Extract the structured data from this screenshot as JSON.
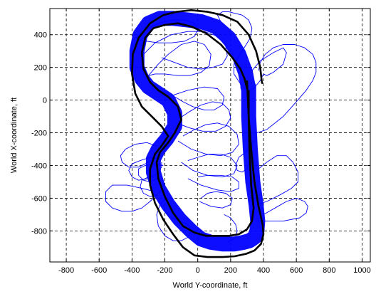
{
  "chart_data": {
    "type": "line",
    "title": "",
    "xlabel": "World Y-coordinate, ft",
    "ylabel": "World X-coordinate, ft",
    "xlim": [
      -900,
      1050
    ],
    "ylim": [
      -990,
      560
    ],
    "xticks": [
      -800,
      -600,
      -400,
      -200,
      0,
      200,
      400,
      600,
      800,
      1000
    ],
    "yticks": [
      -800,
      -600,
      -400,
      -200,
      0,
      200,
      400
    ],
    "grid": true,
    "colors": {
      "tracks": "#0000ff",
      "boundary": "#000000",
      "frame": "#000000",
      "grid": "#000000"
    },
    "series": [
      {
        "role": "track-band",
        "x": [
          310,
          310,
          320,
          335,
          355,
          365,
          360,
          345,
          315,
          280,
          225,
          150,
          80,
          20,
          -40,
          -110,
          -180,
          -240,
          -270,
          -270,
          -240,
          -190,
          -140,
          -140,
          -180,
          -240,
          -300,
          -340,
          -370,
          -370,
          -350,
          -300,
          -230,
          -150,
          -60,
          20,
          110,
          190,
          250,
          290,
          305,
          305
        ],
        "y": [
          80,
          -100,
          -300,
          -500,
          -640,
          -740,
          -800,
          -840,
          -860,
          -870,
          -880,
          -880,
          -870,
          -850,
          -800,
          -730,
          -640,
          -540,
          -440,
          -360,
          -300,
          -240,
          -160,
          -80,
          0,
          40,
          80,
          130,
          200,
          300,
          400,
          470,
          500,
          500,
          490,
          480,
          450,
          380,
          280,
          170,
          90,
          80
        ]
      },
      {
        "role": "outer-boundary",
        "x": [
          300,
          310,
          325,
          345,
          370,
          395,
          400,
          385,
          345,
          295,
          225,
          150,
          60,
          -20,
          -90,
          -150,
          -210,
          -260,
          -290,
          -290,
          -260,
          -220,
          -180,
          -220,
          -280,
          -340,
          -380,
          -400,
          -395,
          -360,
          -290,
          -210,
          -130,
          -40,
          60,
          150,
          240,
          310,
          355,
          380,
          390,
          395
        ],
        "y": [
          120,
          -100,
          -300,
          -500,
          -650,
          -760,
          -820,
          -880,
          -920,
          -940,
          -955,
          -960,
          -960,
          -950,
          -900,
          -820,
          -730,
          -630,
          -520,
          -420,
          -330,
          -280,
          -220,
          -160,
          -100,
          -40,
          40,
          160,
          280,
          380,
          470,
          520,
          540,
          550,
          540,
          520,
          480,
          400,
          300,
          200,
          110,
          100
        ]
      },
      {
        "role": "inner-boundary",
        "x": [
          310,
          310,
          315,
          325,
          340,
          330,
          300,
          250,
          190,
          120,
          50,
          -20,
          -90,
          -150,
          -200,
          -240,
          -250,
          -230,
          -180,
          -140,
          -100,
          -120,
          -180,
          -240,
          -290,
          -330,
          -340,
          -320,
          -270,
          -200,
          -120,
          -40,
          50,
          140,
          210,
          260,
          285,
          295,
          300
        ],
        "y": [
          60,
          -120,
          -320,
          -520,
          -660,
          -740,
          -790,
          -820,
          -830,
          -830,
          -830,
          -810,
          -770,
          -690,
          -590,
          -480,
          -380,
          -320,
          -260,
          -200,
          -120,
          -40,
          20,
          60,
          110,
          190,
          290,
          380,
          440,
          460,
          470,
          450,
          410,
          340,
          260,
          190,
          130,
          90,
          70
        ]
      },
      {
        "role": "wander-path",
        "x": [
          330,
          380,
          460,
          520,
          540,
          520,
          460,
          420,
          400,
          380,
          340,
          300,
          260,
          220,
          220,
          270,
          320,
          330,
          310,
          270,
          230,
          190,
          150,
          120,
          140
        ],
        "y": [
          180,
          240,
          290,
          320,
          290,
          220,
          170,
          150,
          160,
          120,
          70,
          60,
          100,
          160,
          220,
          300,
          380,
          440,
          490,
          520,
          530,
          540,
          540,
          520,
          480
        ]
      },
      {
        "role": "wander-path",
        "x": [
          360,
          420,
          520,
          600,
          660,
          700,
          720,
          720,
          700,
          650,
          590,
          520,
          460,
          410,
          380,
          370
        ],
        "y": [
          -200,
          -180,
          -100,
          -10,
          60,
          120,
          170,
          230,
          280,
          320,
          340,
          340,
          320,
          280,
          230,
          180
        ]
      },
      {
        "role": "wander-path",
        "x": [
          360,
          420,
          500,
          570,
          610,
          610,
          580,
          540,
          480,
          420,
          370
        ],
        "y": [
          -640,
          -620,
          -580,
          -540,
          -500,
          -440,
          -380,
          -340,
          -340,
          -380,
          -420
        ]
      },
      {
        "role": "wander-path",
        "x": [
          360,
          420,
          520,
          620,
          660,
          670,
          650,
          600,
          540,
          470,
          400
        ],
        "y": [
          -740,
          -740,
          -740,
          -720,
          -690,
          -650,
          -620,
          -600,
          -620,
          -660,
          -700
        ]
      },
      {
        "role": "wander-path",
        "x": [
          340,
          320,
          290,
          250,
          230,
          240,
          270,
          300,
          310
        ],
        "y": [
          -250,
          -280,
          -320,
          -350,
          -400,
          -430,
          -440,
          -420,
          -380
        ]
      },
      {
        "role": "wander-path",
        "x": [
          -260,
          -340,
          -430,
          -520,
          -560,
          -560,
          -520,
          -460,
          -400,
          -340,
          -290,
          -250
        ],
        "y": [
          -560,
          -540,
          -520,
          -520,
          -560,
          -620,
          -660,
          -680,
          -680,
          -660,
          -620,
          -580
        ]
      },
      {
        "role": "wander-path",
        "x": [
          -250,
          -310,
          -380,
          -440,
          -470,
          -460,
          -420,
          -360,
          -300,
          -260,
          -240
        ],
        "y": [
          -280,
          -260,
          -270,
          -300,
          -340,
          -380,
          -410,
          -410,
          -380,
          -340,
          -300
        ]
      },
      {
        "role": "wander-path",
        "x": [
          -230,
          -290,
          -350,
          -400,
          -420,
          -400,
          -360,
          -300,
          -250,
          -220,
          -220
        ],
        "y": [
          -360,
          -350,
          -370,
          -390,
          -430,
          -470,
          -490,
          -480,
          -450,
          -410,
          -380
        ]
      },
      {
        "role": "wander-path",
        "x": [
          -210,
          -260,
          -320,
          -360,
          -360,
          -330,
          -290,
          -250,
          -230
        ],
        "y": [
          -400,
          -390,
          -400,
          -420,
          -460,
          -490,
          -500,
          -480,
          -440
        ]
      },
      {
        "role": "wander-path",
        "x": [
          -240,
          -300,
          -340,
          -350,
          -330,
          -290,
          -250,
          -220,
          -210
        ],
        "y": [
          -470,
          -470,
          -490,
          -530,
          -570,
          -590,
          -580,
          -550,
          -510
        ]
      },
      {
        "role": "wander-path",
        "x": [
          -200,
          -230,
          -250,
          -240,
          -200,
          -150,
          -100,
          -60,
          -40,
          -60,
          -110,
          -160,
          -200
        ],
        "y": [
          -600,
          -640,
          -700,
          -770,
          -830,
          -860,
          -860,
          -840,
          -800,
          -760,
          -740,
          -720,
          -680
        ]
      },
      {
        "role": "wander-path",
        "x": [
          -300,
          -240,
          -180,
          -100,
          -20,
          40,
          80,
          70,
          20,
          -50,
          -120,
          -200,
          -260,
          -300
        ],
        "y": [
          150,
          220,
          280,
          340,
          360,
          340,
          280,
          210,
          170,
          150,
          150,
          160,
          160,
          150
        ]
      },
      {
        "role": "wander-path",
        "x": [
          -330,
          -260,
          -160,
          -60,
          40,
          120,
          170,
          180,
          150,
          90,
          20,
          -60,
          -140,
          -220
        ],
        "y": [
          280,
          350,
          400,
          420,
          420,
          390,
          330,
          270,
          220,
          200,
          190,
          200,
          230,
          260
        ]
      },
      {
        "role": "wander-path",
        "x": [
          -150,
          -60,
          40,
          120,
          160,
          150,
          100,
          40,
          -30,
          -90,
          -140
        ],
        "y": [
          30,
          60,
          80,
          70,
          20,
          -30,
          -60,
          -60,
          -40,
          -10,
          20
        ]
      },
      {
        "role": "wander-path",
        "x": [
          -130,
          -50,
          30,
          110,
          170,
          200,
          190,
          150,
          90,
          20,
          -50,
          -110
        ],
        "y": [
          -140,
          -170,
          -190,
          -190,
          -160,
          -110,
          -60,
          -20,
          -10,
          -30,
          -70,
          -110
        ]
      },
      {
        "role": "wander-path",
        "x": [
          -120,
          -40,
          50,
          140,
          210,
          250,
          240,
          190,
          120,
          50,
          -20,
          -90
        ],
        "y": [
          -250,
          -300,
          -330,
          -340,
          -320,
          -270,
          -210,
          -160,
          -140,
          -150,
          -180,
          -220
        ]
      },
      {
        "role": "wander-path",
        "x": [
          -100,
          -30,
          60,
          150,
          220,
          240,
          200,
          140,
          70,
          0,
          -60
        ],
        "y": [
          -380,
          -430,
          -460,
          -470,
          -450,
          -400,
          -350,
          -330,
          -330,
          -350,
          -370
        ]
      },
      {
        "role": "wander-path",
        "x": [
          -60,
          20,
          120,
          200,
          250,
          250,
          210,
          140,
          60,
          0
        ],
        "y": [
          -480,
          -520,
          -550,
          -560,
          -540,
          -500,
          -470,
          -460,
          -460,
          -470
        ]
      },
      {
        "role": "wander-path",
        "x": [
          10,
          80,
          150,
          200,
          210,
          170,
          110,
          60,
          20
        ],
        "y": [
          -620,
          -650,
          -660,
          -640,
          -600,
          -570,
          -560,
          -570,
          -600
        ]
      },
      {
        "role": "wander-path",
        "x": [
          -380,
          -320,
          -240,
          -160,
          -80,
          -20,
          0,
          -20,
          -80,
          -160,
          -240,
          -310,
          -360
        ],
        "y": [
          380,
          430,
          470,
          490,
          490,
          470,
          430,
          390,
          360,
          350,
          350,
          360,
          370
        ]
      },
      {
        "role": "wander-path",
        "x": [
          160,
          200,
          230,
          240,
          230,
          200,
          180
        ],
        "y": [
          -700,
          -720,
          -760,
          -800,
          -840,
          -860,
          -870
        ]
      }
    ]
  }
}
